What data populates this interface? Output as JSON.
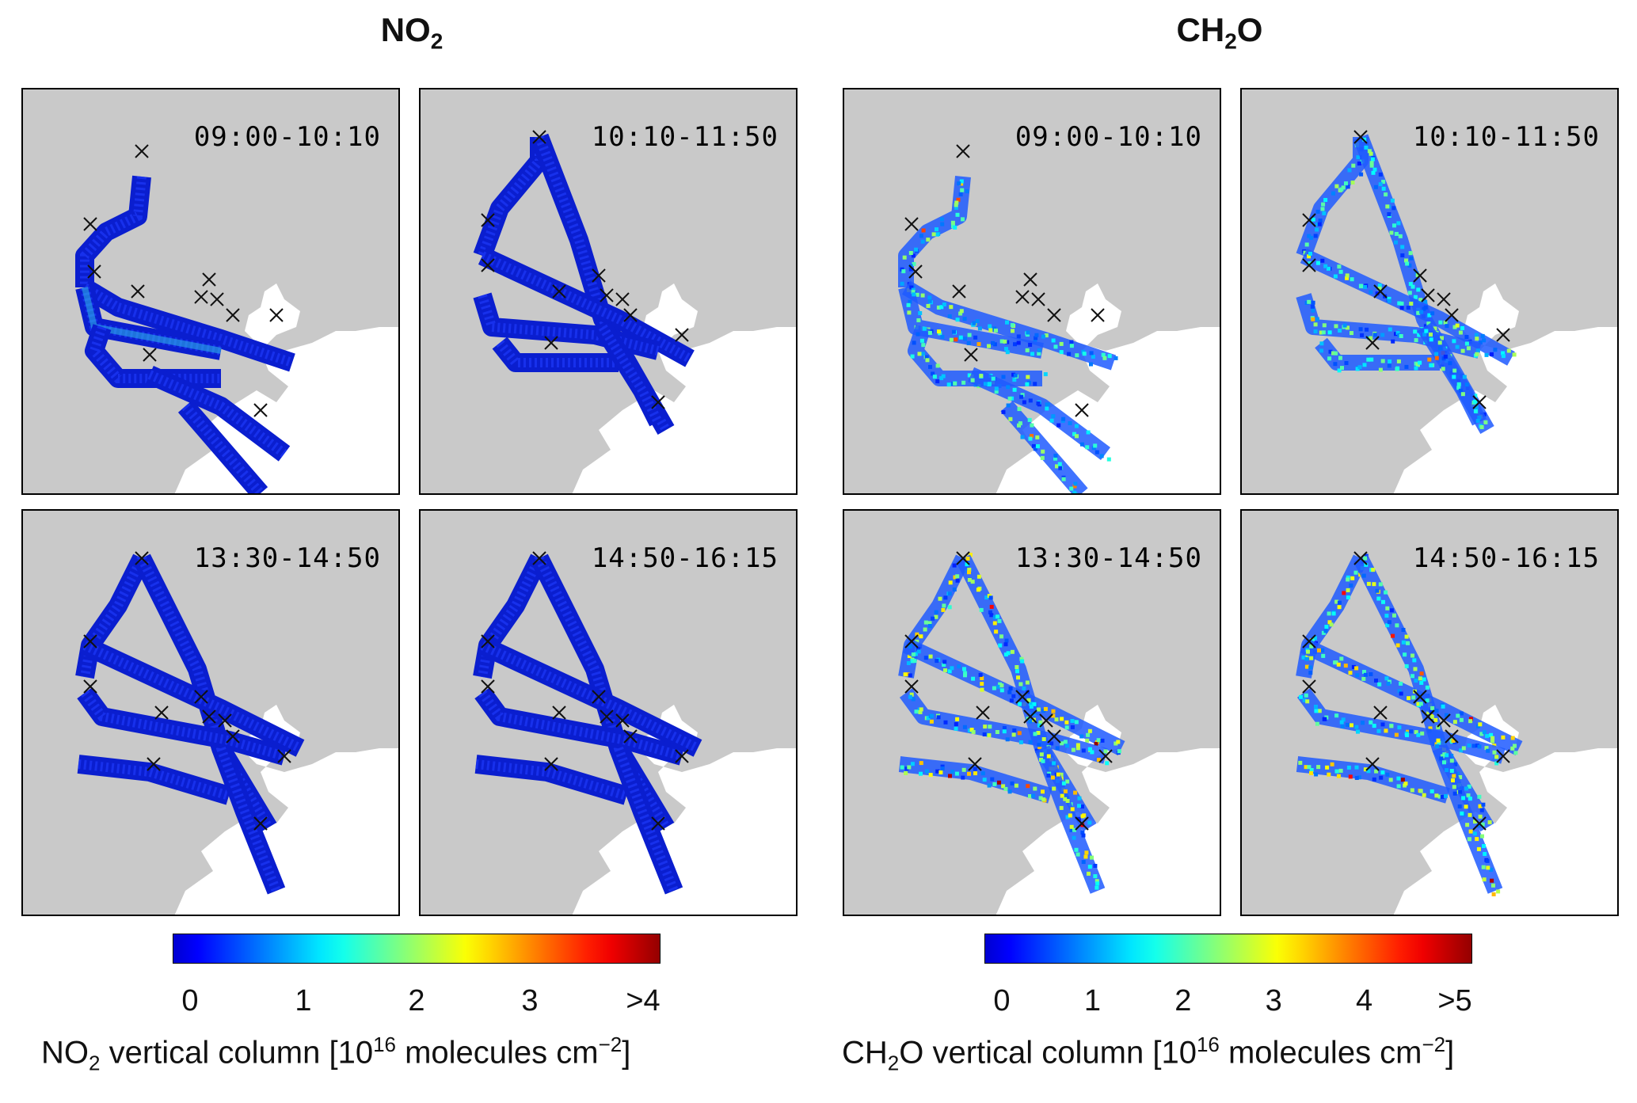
{
  "groups": [
    {
      "id": "no2",
      "title_main": "NO",
      "title_sub": "2",
      "panels": [
        "09:00-10:10",
        "10:10-11:50",
        "13:30-14:50",
        "14:50-16:15"
      ],
      "colorbar": {
        "ticks": [
          "0",
          "1",
          "2",
          "3",
          ">4"
        ],
        "label_pre": "NO",
        "label_sub": "2",
        "label_mid": " vertical column [10",
        "label_sup": "16",
        "label_post": " molecules cm",
        "label_sup2": "−2",
        "label_end": "]"
      }
    },
    {
      "id": "ch2o",
      "title_main": "CH",
      "title_sub": "2",
      "title_end": "O",
      "panels": [
        "09:00-10:10",
        "10:10-11:50",
        "13:30-14:50",
        "14:50-16:15"
      ],
      "colorbar": {
        "ticks": [
          "0",
          "1",
          "2",
          "3",
          "4",
          ">5"
        ],
        "label_pre": "CH",
        "label_sub": "2",
        "label_mid": "O vertical column [10",
        "label_sup": "16",
        "label_post": " molecules cm",
        "label_sup2": "−2",
        "label_end": "]"
      }
    }
  ],
  "chart_data": [
    {
      "type": "heatmap",
      "title": "NO2",
      "panels": [
        "09:00-10:10",
        "10:10-11:50",
        "13:30-14:50",
        "14:50-16:15"
      ],
      "colorbar_range": [
        0,
        4
      ],
      "colorbar_ticks": [
        "0",
        "1",
        "2",
        "3",
        ">4"
      ],
      "colormap": "jet",
      "label": "NO2 vertical column [10^16 molecules cm^-2]"
    },
    {
      "type": "heatmap",
      "title": "CH2O",
      "panels": [
        "09:00-10:10",
        "10:10-11:50",
        "13:30-14:50",
        "14:50-16:15"
      ],
      "colorbar_range": [
        0,
        5
      ],
      "colorbar_ticks": [
        "0",
        "1",
        "2",
        "3",
        "4",
        ">5"
      ],
      "colormap": "jet",
      "label": "CH2O vertical column [10^16 molecules cm^-2]"
    }
  ],
  "colors": {
    "land": "#c9c9c9",
    "water": "#ffffff",
    "low": "#0a1ecf",
    "marker": "#111111"
  }
}
